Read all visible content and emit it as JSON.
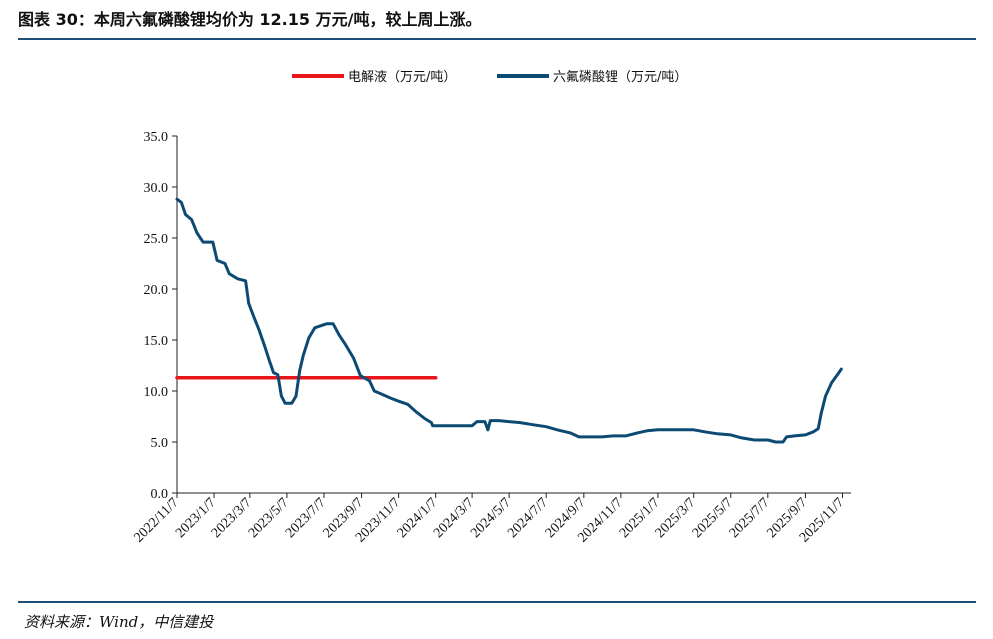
{
  "header": {
    "label": "图表 30：",
    "text": "本周六氟磷酸锂均价为 12.15 万元/吨，较上周上涨。"
  },
  "footer": {
    "source": "资料来源：Wind，中信建投"
  },
  "colors": {
    "electrolyte": "#e8151b",
    "lipf6": "#0d4a73",
    "rule": "#1f4e79"
  },
  "chart_data": {
    "type": "line",
    "title": "",
    "xlabel": "",
    "ylabel": "",
    "ylim": [
      0,
      35
    ],
    "yticks": [
      "0.0",
      "5.0",
      "10.0",
      "15.0",
      "20.0",
      "25.0",
      "30.0",
      "35.0"
    ],
    "xlim": [
      "2022-11-07",
      "2025-11-21"
    ],
    "xticks": [
      "2022/11/7",
      "2023/1/7",
      "2023/3/7",
      "2023/5/7",
      "2023/7/7",
      "2023/9/7",
      "2023/11/7",
      "2024/1/7",
      "2024/3/7",
      "2024/5/7",
      "2024/7/7",
      "2024/9/7",
      "2024/11/7",
      "2025/1/7",
      "2025/3/7",
      "2025/5/7",
      "2025/7/7",
      "2025/9/7",
      "2025/11/7"
    ],
    "legend_position": "top-center",
    "grid": false,
    "series": [
      {
        "name": "电解液（万元/吨）",
        "color": "#e8151b",
        "points": [
          [
            "2022-11-07",
            11.3
          ],
          [
            "2024-01-07",
            11.3
          ]
        ]
      },
      {
        "name": "六氟磷酸锂（万元/吨）",
        "color": "#0d4a73",
        "points": [
          [
            "2022-11-07",
            28.8
          ],
          [
            "2022-11-14",
            28.5
          ],
          [
            "2022-11-21",
            27.3
          ],
          [
            "2022-12-01",
            26.8
          ],
          [
            "2022-12-10",
            25.5
          ],
          [
            "2022-12-20",
            24.6
          ],
          [
            "2023-01-05",
            24.6
          ],
          [
            "2023-01-12",
            22.8
          ],
          [
            "2023-01-25",
            22.5
          ],
          [
            "2023-02-01",
            21.5
          ],
          [
            "2023-02-15",
            21.0
          ],
          [
            "2023-02-28",
            20.8
          ],
          [
            "2023-03-05",
            18.6
          ],
          [
            "2023-03-12",
            17.5
          ],
          [
            "2023-03-22",
            16.0
          ],
          [
            "2023-04-01",
            14.3
          ],
          [
            "2023-04-08",
            13.0
          ],
          [
            "2023-04-15",
            11.8
          ],
          [
            "2023-04-22",
            11.6
          ],
          [
            "2023-04-28",
            9.5
          ],
          [
            "2023-05-04",
            8.8
          ],
          [
            "2023-05-15",
            8.8
          ],
          [
            "2023-05-22",
            9.5
          ],
          [
            "2023-05-28",
            12.0
          ],
          [
            "2023-06-03",
            13.5
          ],
          [
            "2023-06-12",
            15.2
          ],
          [
            "2023-06-22",
            16.2
          ],
          [
            "2023-07-02",
            16.4
          ],
          [
            "2023-07-12",
            16.6
          ],
          [
            "2023-07-22",
            16.6
          ],
          [
            "2023-08-01",
            15.5
          ],
          [
            "2023-08-12",
            14.5
          ],
          [
            "2023-08-25",
            13.2
          ],
          [
            "2023-09-05",
            11.5
          ],
          [
            "2023-09-20",
            11.0
          ],
          [
            "2023-09-28",
            10.0
          ],
          [
            "2023-10-10",
            9.7
          ],
          [
            "2023-10-25",
            9.3
          ],
          [
            "2023-11-07",
            9.0
          ],
          [
            "2023-11-22",
            8.7
          ],
          [
            "2023-12-05",
            8.0
          ],
          [
            "2023-12-20",
            7.3
          ],
          [
            "2023-12-31",
            6.9
          ],
          [
            "2024-01-02",
            6.6
          ],
          [
            "2024-01-20",
            6.6
          ],
          [
            "2024-02-10",
            6.6
          ],
          [
            "2024-02-25",
            6.6
          ],
          [
            "2024-03-07",
            6.6
          ],
          [
            "2024-03-15",
            7.0
          ],
          [
            "2024-03-28",
            7.0
          ],
          [
            "2024-04-02",
            6.2
          ],
          [
            "2024-04-06",
            7.1
          ],
          [
            "2024-04-20",
            7.1
          ],
          [
            "2024-05-07",
            7.0
          ],
          [
            "2024-05-25",
            6.9
          ],
          [
            "2024-06-15",
            6.7
          ],
          [
            "2024-07-07",
            6.5
          ],
          [
            "2024-07-25",
            6.2
          ],
          [
            "2024-08-15",
            5.9
          ],
          [
            "2024-08-30",
            5.5
          ],
          [
            "2024-09-15",
            5.5
          ],
          [
            "2024-10-07",
            5.5
          ],
          [
            "2024-10-25",
            5.6
          ],
          [
            "2024-11-15",
            5.6
          ],
          [
            "2024-12-05",
            5.9
          ],
          [
            "2024-12-20",
            6.1
          ],
          [
            "2025-01-07",
            6.2
          ],
          [
            "2025-02-07",
            6.2
          ],
          [
            "2025-03-07",
            6.2
          ],
          [
            "2025-03-25",
            6.0
          ],
          [
            "2025-04-15",
            5.8
          ],
          [
            "2025-05-07",
            5.7
          ],
          [
            "2025-05-25",
            5.4
          ],
          [
            "2025-06-15",
            5.2
          ],
          [
            "2025-07-07",
            5.2
          ],
          [
            "2025-07-20",
            5.0
          ],
          [
            "2025-08-01",
            5.0
          ],
          [
            "2025-08-07",
            5.5
          ],
          [
            "2025-08-20",
            5.6
          ],
          [
            "2025-09-07",
            5.7
          ],
          [
            "2025-09-20",
            6.0
          ],
          [
            "2025-09-28",
            6.3
          ],
          [
            "2025-10-03",
            7.8
          ],
          [
            "2025-10-10",
            9.5
          ],
          [
            "2025-10-20",
            10.8
          ],
          [
            "2025-11-01",
            11.8
          ],
          [
            "2025-11-05",
            12.15
          ]
        ]
      }
    ]
  }
}
